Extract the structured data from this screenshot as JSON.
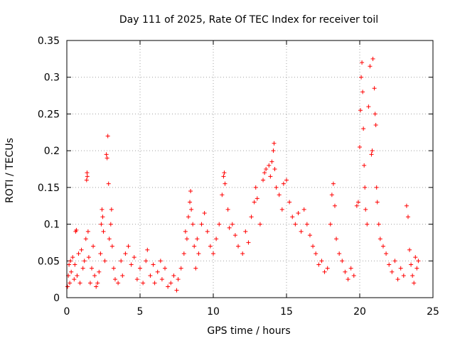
{
  "chart_data": {
    "type": "scatter",
    "title": "Day 111 of 2025, Rate Of TEC Index for receiver toil",
    "xlabel": "GPS time / hours",
    "ylabel": "ROTI / TECUs",
    "xlim": [
      0,
      25
    ],
    "ylim": [
      0,
      0.35
    ],
    "xticks": [
      0,
      5,
      10,
      15,
      20,
      25
    ],
    "xtick_labels": [
      "0",
      "5",
      "10",
      "15",
      "20",
      "25"
    ],
    "yticks": [
      0,
      0.05,
      0.1,
      0.15,
      0.2,
      0.25,
      0.3,
      0.35
    ],
    "ytick_labels": [
      "0",
      "0.05",
      "0.1",
      "0.15",
      "0.2",
      "0.25",
      "0.3",
      "0.35"
    ],
    "grid": true,
    "marker": "+",
    "color": "#ff0000",
    "series": [
      {
        "name": "ROTI",
        "points": [
          [
            0.05,
            0.015
          ],
          [
            0.1,
            0.03
          ],
          [
            0.15,
            0.045
          ],
          [
            0.2,
            0.02
          ],
          [
            0.25,
            0.05
          ],
          [
            0.3,
            0.035
          ],
          [
            0.4,
            0.055
          ],
          [
            0.5,
            0.025
          ],
          [
            0.55,
            0.045
          ],
          [
            0.6,
            0.09
          ],
          [
            0.65,
            0.092
          ],
          [
            0.7,
            0.03
          ],
          [
            0.8,
            0.06
          ],
          [
            0.9,
            0.02
          ],
          [
            1.0,
            0.065
          ],
          [
            1.1,
            0.04
          ],
          [
            1.2,
            0.05
          ],
          [
            1.3,
            0.08
          ],
          [
            1.35,
            0.16
          ],
          [
            1.38,
            0.17
          ],
          [
            1.4,
            0.165
          ],
          [
            1.45,
            0.09
          ],
          [
            1.5,
            0.055
          ],
          [
            1.6,
            0.02
          ],
          [
            1.7,
            0.04
          ],
          [
            1.8,
            0.07
          ],
          [
            1.9,
            0.03
          ],
          [
            2.0,
            0.015
          ],
          [
            2.1,
            0.02
          ],
          [
            2.2,
            0.035
          ],
          [
            2.3,
            0.06
          ],
          [
            2.35,
            0.1
          ],
          [
            2.4,
            0.12
          ],
          [
            2.45,
            0.11
          ],
          [
            2.5,
            0.09
          ],
          [
            2.6,
            0.05
          ],
          [
            2.7,
            0.195
          ],
          [
            2.75,
            0.19
          ],
          [
            2.8,
            0.22
          ],
          [
            2.85,
            0.155
          ],
          [
            2.9,
            0.08
          ],
          [
            3.0,
            0.1
          ],
          [
            3.05,
            0.12
          ],
          [
            3.1,
            0.07
          ],
          [
            3.2,
            0.04
          ],
          [
            3.3,
            0.025
          ],
          [
            3.5,
            0.02
          ],
          [
            3.7,
            0.05
          ],
          [
            3.8,
            0.03
          ],
          [
            4.0,
            0.06
          ],
          [
            4.2,
            0.07
          ],
          [
            4.4,
            0.045
          ],
          [
            4.6,
            0.055
          ],
          [
            4.8,
            0.025
          ],
          [
            5.0,
            0.04
          ],
          [
            5.2,
            0.02
          ],
          [
            5.4,
            0.05
          ],
          [
            5.5,
            0.065
          ],
          [
            5.7,
            0.03
          ],
          [
            5.9,
            0.045
          ],
          [
            6.0,
            0.02
          ],
          [
            6.2,
            0.035
          ],
          [
            6.4,
            0.05
          ],
          [
            6.5,
            0.025
          ],
          [
            6.7,
            0.04
          ],
          [
            6.9,
            0.015
          ],
          [
            7.1,
            0.02
          ],
          [
            7.3,
            0.03
          ],
          [
            7.5,
            0.01
          ],
          [
            7.6,
            0.025
          ],
          [
            7.8,
            0.04
          ],
          [
            8.0,
            0.06
          ],
          [
            8.1,
            0.09
          ],
          [
            8.2,
            0.08
          ],
          [
            8.3,
            0.11
          ],
          [
            8.4,
            0.13
          ],
          [
            8.45,
            0.145
          ],
          [
            8.5,
            0.12
          ],
          [
            8.6,
            0.1
          ],
          [
            8.7,
            0.07
          ],
          [
            8.8,
            0.04
          ],
          [
            8.9,
            0.08
          ],
          [
            9.0,
            0.06
          ],
          [
            9.2,
            0.1
          ],
          [
            9.4,
            0.115
          ],
          [
            9.6,
            0.09
          ],
          [
            9.8,
            0.07
          ],
          [
            10.0,
            0.06
          ],
          [
            10.2,
            0.08
          ],
          [
            10.4,
            0.1
          ],
          [
            10.6,
            0.14
          ],
          [
            10.7,
            0.165
          ],
          [
            10.75,
            0.17
          ],
          [
            10.8,
            0.155
          ],
          [
            11.0,
            0.12
          ],
          [
            11.1,
            0.095
          ],
          [
            11.3,
            0.1
          ],
          [
            11.5,
            0.085
          ],
          [
            11.7,
            0.07
          ],
          [
            12.0,
            0.06
          ],
          [
            12.2,
            0.09
          ],
          [
            12.4,
            0.075
          ],
          [
            12.6,
            0.11
          ],
          [
            12.8,
            0.13
          ],
          [
            12.9,
            0.15
          ],
          [
            13.0,
            0.135
          ],
          [
            13.2,
            0.1
          ],
          [
            13.4,
            0.16
          ],
          [
            13.5,
            0.17
          ],
          [
            13.6,
            0.175
          ],
          [
            13.8,
            0.18
          ],
          [
            13.9,
            0.165
          ],
          [
            14.0,
            0.185
          ],
          [
            14.1,
            0.2
          ],
          [
            14.15,
            0.21
          ],
          [
            14.2,
            0.175
          ],
          [
            14.3,
            0.15
          ],
          [
            14.5,
            0.14
          ],
          [
            14.7,
            0.12
          ],
          [
            14.8,
            0.155
          ],
          [
            15.0,
            0.16
          ],
          [
            15.2,
            0.13
          ],
          [
            15.4,
            0.11
          ],
          [
            15.6,
            0.1
          ],
          [
            15.8,
            0.115
          ],
          [
            16.0,
            0.09
          ],
          [
            16.2,
            0.12
          ],
          [
            16.4,
            0.1
          ],
          [
            16.6,
            0.085
          ],
          [
            16.8,
            0.07
          ],
          [
            17.0,
            0.06
          ],
          [
            17.2,
            0.045
          ],
          [
            17.4,
            0.05
          ],
          [
            17.6,
            0.035
          ],
          [
            17.8,
            0.04
          ],
          [
            18.0,
            0.1
          ],
          [
            18.1,
            0.14
          ],
          [
            18.2,
            0.155
          ],
          [
            18.3,
            0.125
          ],
          [
            18.4,
            0.08
          ],
          [
            18.6,
            0.06
          ],
          [
            18.8,
            0.05
          ],
          [
            19.0,
            0.035
          ],
          [
            19.2,
            0.025
          ],
          [
            19.4,
            0.04
          ],
          [
            19.6,
            0.03
          ],
          [
            19.8,
            0.125
          ],
          [
            19.9,
            0.13
          ],
          [
            20.0,
            0.205
          ],
          [
            20.05,
            0.255
          ],
          [
            20.1,
            0.3
          ],
          [
            20.15,
            0.32
          ],
          [
            20.2,
            0.28
          ],
          [
            20.25,
            0.23
          ],
          [
            20.3,
            0.18
          ],
          [
            20.35,
            0.15
          ],
          [
            20.4,
            0.12
          ],
          [
            20.5,
            0.1
          ],
          [
            20.6,
            0.26
          ],
          [
            20.7,
            0.315
          ],
          [
            20.8,
            0.195
          ],
          [
            20.85,
            0.2
          ],
          [
            20.9,
            0.325
          ],
          [
            21.0,
            0.285
          ],
          [
            21.05,
            0.25
          ],
          [
            21.1,
            0.235
          ],
          [
            21.15,
            0.15
          ],
          [
            21.2,
            0.13
          ],
          [
            21.3,
            0.1
          ],
          [
            21.4,
            0.08
          ],
          [
            21.6,
            0.07
          ],
          [
            21.8,
            0.06
          ],
          [
            22.0,
            0.045
          ],
          [
            22.2,
            0.035
          ],
          [
            22.4,
            0.05
          ],
          [
            22.6,
            0.025
          ],
          [
            22.8,
            0.04
          ],
          [
            23.0,
            0.03
          ],
          [
            23.2,
            0.125
          ],
          [
            23.3,
            0.11
          ],
          [
            23.4,
            0.065
          ],
          [
            23.5,
            0.045
          ],
          [
            23.6,
            0.03
          ],
          [
            23.7,
            0.02
          ],
          [
            23.8,
            0.055
          ],
          [
            23.9,
            0.04
          ],
          [
            24.0,
            0.05
          ]
        ]
      }
    ]
  }
}
